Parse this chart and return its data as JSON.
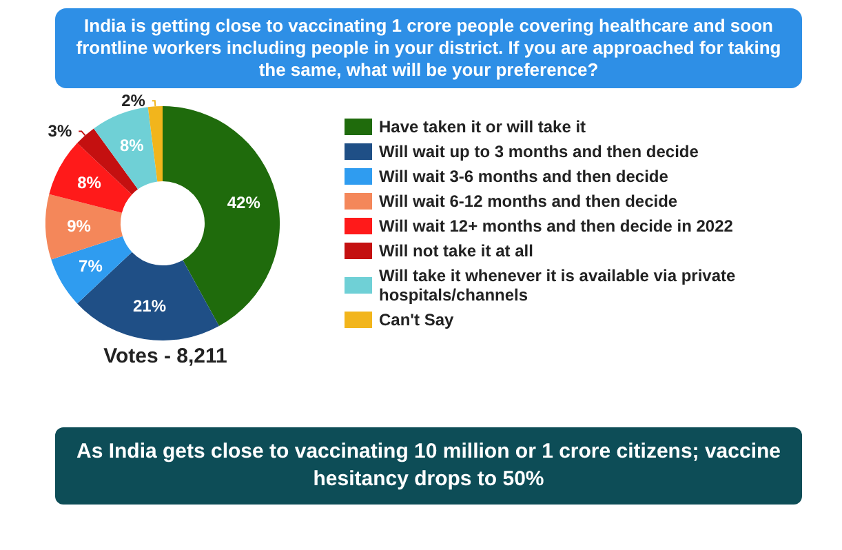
{
  "chart_data": {
    "type": "donut",
    "title": "India is getting close to vaccinating 1 crore people covering healthcare and soon frontline workers including people in your district. If you are approached for taking the same, what will be your preference?",
    "categories": [
      "Have taken it or will take it",
      "Will wait up to 3 months and then decide",
      "Will wait 3-6 months and then decide",
      "Will wait 6-12 months and then decide",
      "Will wait 12+ months and then decide in 2022",
      "Will not take it at all",
      "Will take it whenever it is available via private hospitals/channels",
      "Can't Say"
    ],
    "values": [
      42,
      21,
      7,
      9,
      8,
      3,
      8,
      2
    ],
    "colors": [
      "#1f6b0c",
      "#1f4f86",
      "#2f9cf0",
      "#f4875a",
      "#ff1a1a",
      "#c41010",
      "#6fd0d6",
      "#f2b51c"
    ],
    "value_labels": [
      "42%",
      "21%",
      "7%",
      "9%",
      "8%",
      "3%",
      "8%",
      "2%"
    ],
    "legend": "right",
    "annotations": [
      "Votes - 8,211",
      "As India gets close to vaccinating 10 million or 1 crore citizens; vaccine hesitancy drops to 50%"
    ]
  }
}
